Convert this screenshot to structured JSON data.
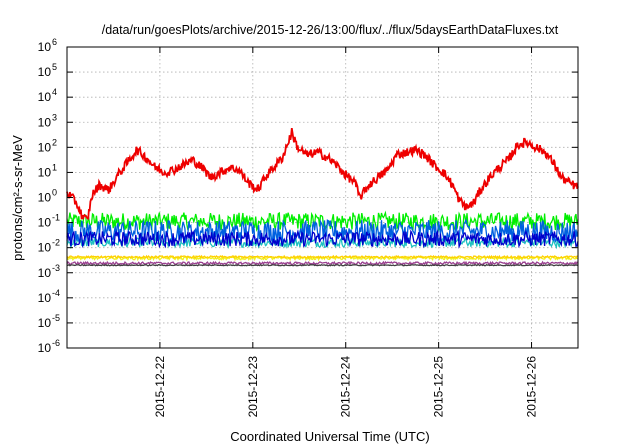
{
  "chart_data": {
    "type": "line",
    "title": "/data/run/goesPlots/archive/2015-12-26/13:00/flux/../flux/5daysEarthDataFluxes.txt",
    "xlabel": "Coordinated Universal Time (UTC)",
    "ylabel": "protons/cm²-s-sr-MeV",
    "y_scale": "log",
    "ylim_exp": [
      -6,
      6
    ],
    "y_ticks": [
      {
        "base": "10",
        "exp": "-6"
      },
      {
        "base": "10",
        "exp": "-5"
      },
      {
        "base": "10",
        "exp": "-4"
      },
      {
        "base": "10",
        "exp": "-3"
      },
      {
        "base": "10",
        "exp": "-2"
      },
      {
        "base": "10",
        "exp": "-1"
      },
      {
        "base": "10",
        "exp": "0"
      },
      {
        "base": "10",
        "exp": "1"
      },
      {
        "base": "10",
        "exp": "2"
      },
      {
        "base": "10",
        "exp": "3"
      },
      {
        "base": "10",
        "exp": "4"
      },
      {
        "base": "10",
        "exp": "5"
      },
      {
        "base": "10",
        "exp": "6"
      }
    ],
    "x_range_days": [
      "2015-12-21 00:00",
      "2015-12-26 12:00"
    ],
    "x_ticks": [
      "2015-12-22",
      "2015-12-23",
      "2015-12-24",
      "2015-12-25",
      "2015-12-26"
    ],
    "grid": true,
    "series": [
      {
        "color": "#ee0000",
        "noise_exp": 0.18,
        "points_exp": [
          [
            0.0,
            0.2
          ],
          [
            0.1,
            -0.2
          ],
          [
            0.17,
            -0.8
          ],
          [
            0.22,
            -0.9
          ],
          [
            0.27,
            0.1
          ],
          [
            0.35,
            0.5
          ],
          [
            0.45,
            0.3
          ],
          [
            0.55,
            0.9
          ],
          [
            0.65,
            1.4
          ],
          [
            0.75,
            1.9
          ],
          [
            0.85,
            1.6
          ],
          [
            0.95,
            1.2
          ],
          [
            1.05,
            1.0
          ],
          [
            1.15,
            1.1
          ],
          [
            1.25,
            1.3
          ],
          [
            1.35,
            1.5
          ],
          [
            1.45,
            1.2
          ],
          [
            1.55,
            0.8
          ],
          [
            1.65,
            1.0
          ],
          [
            1.75,
            1.2
          ],
          [
            1.85,
            1.1
          ],
          [
            1.95,
            0.6
          ],
          [
            2.05,
            0.3
          ],
          [
            2.15,
            0.9
          ],
          [
            2.25,
            1.3
          ],
          [
            2.32,
            1.6
          ],
          [
            2.42,
            2.6
          ],
          [
            2.48,
            2.0
          ],
          [
            2.58,
            1.7
          ],
          [
            2.7,
            1.8
          ],
          [
            2.8,
            1.6
          ],
          [
            2.9,
            1.3
          ],
          [
            3.0,
            0.9
          ],
          [
            3.1,
            0.6
          ],
          [
            3.15,
            0.0
          ],
          [
            3.25,
            0.5
          ],
          [
            3.35,
            0.8
          ],
          [
            3.45,
            1.1
          ],
          [
            3.55,
            1.7
          ],
          [
            3.65,
            1.8
          ],
          [
            3.75,
            1.9
          ],
          [
            3.85,
            1.7
          ],
          [
            3.95,
            1.3
          ],
          [
            4.05,
            1.0
          ],
          [
            4.15,
            0.5
          ],
          [
            4.22,
            -0.1
          ],
          [
            4.3,
            -0.4
          ],
          [
            4.38,
            -0.2
          ],
          [
            4.45,
            0.3
          ],
          [
            4.55,
            0.8
          ],
          [
            4.65,
            1.2
          ],
          [
            4.75,
            1.5
          ],
          [
            4.85,
            2.1
          ],
          [
            4.95,
            2.2
          ],
          [
            5.05,
            2.0
          ],
          [
            5.15,
            1.8
          ],
          [
            5.25,
            1.3
          ],
          [
            5.32,
            0.8
          ],
          [
            5.4,
            0.6
          ],
          [
            5.5,
            0.4
          ],
          [
            5.58,
            0.1
          ],
          [
            5.66,
            0.3
          ],
          [
            5.74,
            0.9
          ],
          [
            5.82,
            1.2
          ],
          [
            5.9,
            1.6
          ],
          [
            5.98,
            1.9
          ],
          [
            6.06,
            2.0
          ],
          [
            6.14,
            1.7
          ],
          [
            6.22,
            1.4
          ],
          [
            6.3,
            1.0
          ],
          [
            6.38,
            0.6
          ],
          [
            6.45,
            0.4
          ],
          [
            6.5,
            0.3
          ],
          [
            6.56,
            -0.3
          ],
          [
            6.62,
            0.0
          ],
          [
            6.7,
            0.5
          ],
          [
            6.78,
            0.3
          ],
          [
            6.86,
            0.8
          ],
          [
            6.94,
            1.1
          ],
          [
            7.02,
            1.4
          ],
          [
            7.1,
            1.6
          ],
          [
            7.18,
            1.7
          ]
        ]
      },
      {
        "color": "#00ee00",
        "level_exp": -0.95,
        "amp_exp": 0.35
      },
      {
        "color": "#1fc0c0",
        "level_exp": -1.8,
        "amp_exp": 0.18
      },
      {
        "color": "#0060e0",
        "level_exp": -1.35,
        "amp_exp": 0.45
      },
      {
        "color": "#0000cc",
        "level_exp": -1.65,
        "amp_exp": 0.3
      },
      {
        "color": "#f0f020",
        "level_exp": -2.42,
        "amp_exp": 0.06
      },
      {
        "color": "#ffd000",
        "level_exp": -2.37,
        "amp_exp": 0.04
      },
      {
        "color": "#9a4090",
        "level_exp": -2.62,
        "amp_exp": 0.05
      },
      {
        "color": "#404040",
        "level_exp": -2.7,
        "amp_exp": 0.02
      }
    ]
  }
}
